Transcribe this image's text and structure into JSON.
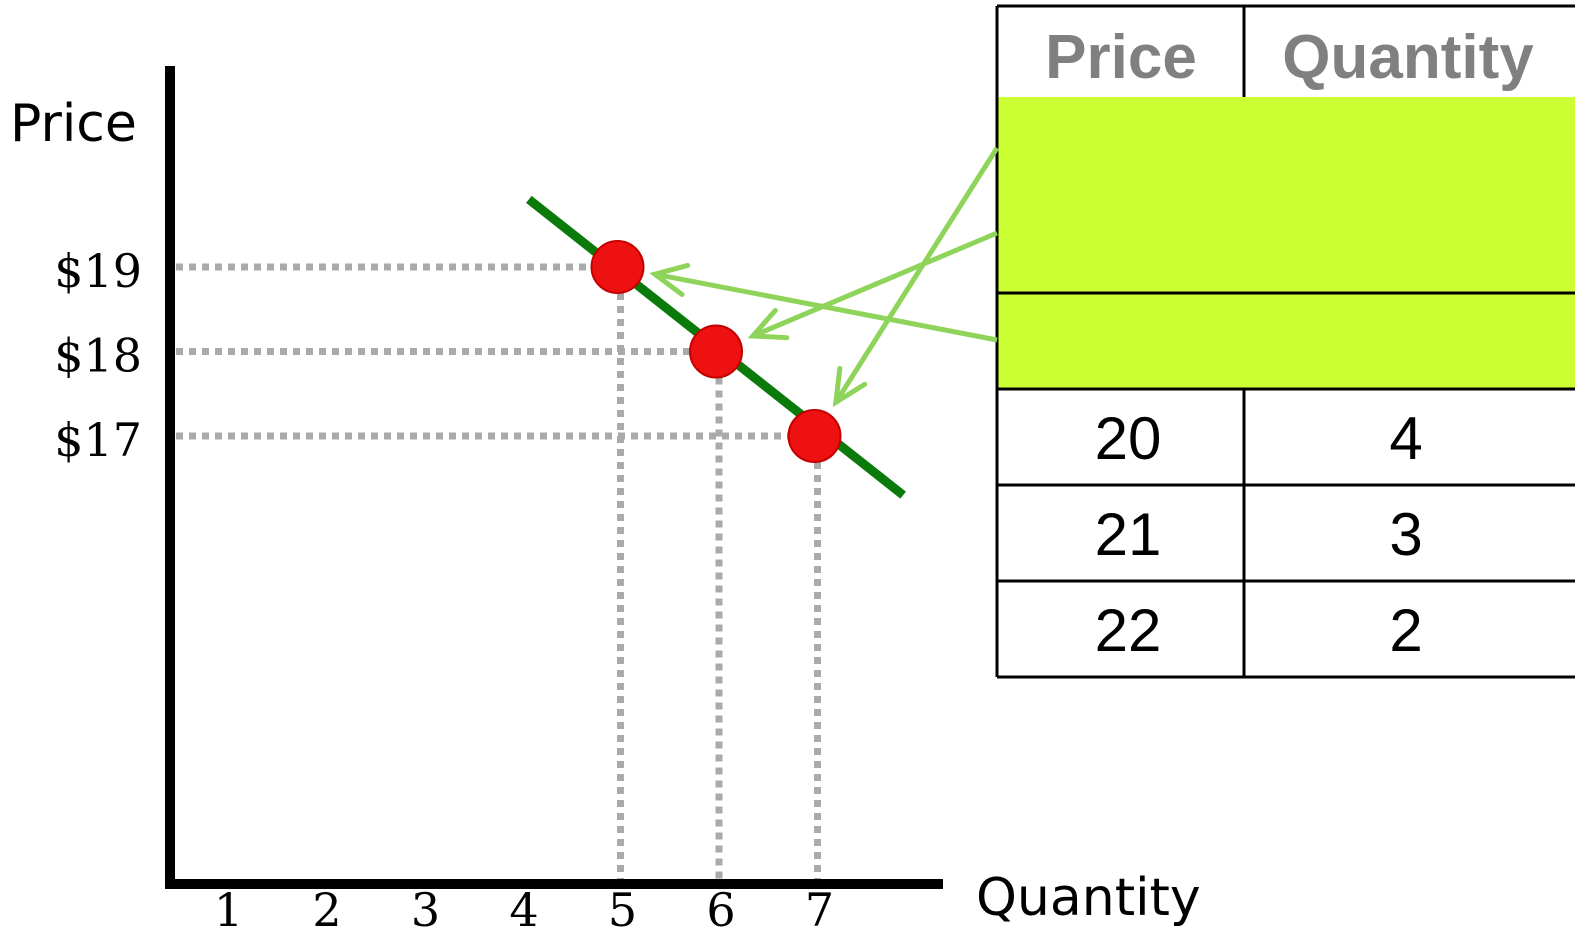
{
  "chart_data": {
    "type": "line",
    "xlabel": "Quantity",
    "ylabel": "Price",
    "x_ticks": [
      "1",
      "2",
      "3",
      "4",
      "5",
      "6",
      "7"
    ],
    "y_ticks": [
      "$19",
      "$18",
      "$17"
    ],
    "demand_line": {
      "from": {
        "x": 4.1,
        "y": 19.8
      },
      "to": {
        "x": 7.9,
        "y": 16.3
      }
    },
    "points": [
      {
        "x": 5,
        "y": 19
      },
      {
        "x": 6,
        "y": 18
      },
      {
        "x": 7,
        "y": 17
      }
    ],
    "colors": {
      "line": "#0a7a0a",
      "points": "#ee1111",
      "guides": "#aaaaaa",
      "highlight": "#ccff33",
      "arrows": "#8fd45a"
    }
  },
  "table": {
    "headers": [
      "Price",
      "Quantity"
    ],
    "rows": [
      [
        "",
        ""
      ],
      [
        "",
        ""
      ],
      [
        "20",
        "4"
      ],
      [
        "21",
        "3"
      ],
      [
        "22",
        "2"
      ]
    ],
    "highlighted_rows": [
      0,
      1
    ]
  }
}
